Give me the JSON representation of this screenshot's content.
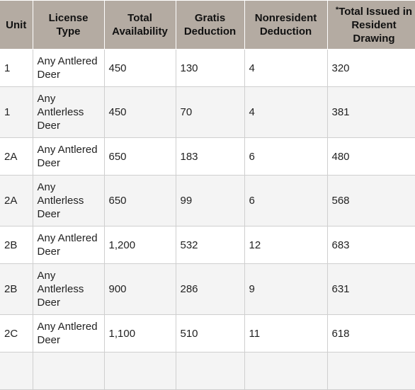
{
  "table": {
    "headers": [
      {
        "label": "Unit"
      },
      {
        "label": "License Type"
      },
      {
        "label": "Total Availability"
      },
      {
        "label": "Gratis Deduction"
      },
      {
        "label": "Nonresident Deduction"
      },
      {
        "label": "Total Issued in Resident Drawing",
        "prefix": "*"
      }
    ],
    "rows": [
      {
        "unit": "1",
        "license": "Any Antlered Deer",
        "total": "450",
        "gratis": "130",
        "nonresident": "4",
        "issued": "320"
      },
      {
        "unit": "1",
        "license": "Any Antlerless Deer",
        "total": "450",
        "gratis": "70",
        "nonresident": "4",
        "issued": "381"
      },
      {
        "unit": "2A",
        "license": "Any Antlered Deer",
        "total": "650",
        "gratis": "183",
        "nonresident": "6",
        "issued": "480"
      },
      {
        "unit": "2A",
        "license": "Any Antlerless Deer",
        "total": "650",
        "gratis": "99",
        "nonresident": "6",
        "issued": "568"
      },
      {
        "unit": "2B",
        "license": "Any Antlered Deer",
        "total": "1,200",
        "gratis": "532",
        "nonresident": "12",
        "issued": "683"
      },
      {
        "unit": "2B",
        "license": "Any Antlerless Deer",
        "total": "900",
        "gratis": "286",
        "nonresident": "9",
        "issued": "631"
      },
      {
        "unit": "2C",
        "license": "Any Antlered Deer",
        "total": "1,100",
        "gratis": "510",
        "nonresident": "11",
        "issued": "618"
      }
    ]
  }
}
